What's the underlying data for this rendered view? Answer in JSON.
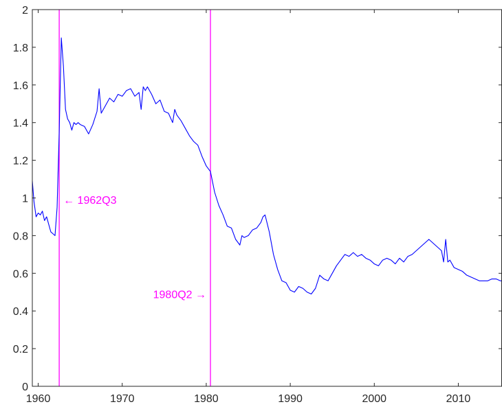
{
  "chart_data": {
    "type": "line",
    "title": "",
    "xlabel": "",
    "ylabel": "",
    "xlim": [
      1959.3,
      2015.2
    ],
    "ylim": [
      0,
      2
    ],
    "grid": false,
    "x_ticks": [
      1960,
      1970,
      1980,
      1990,
      2000,
      2010
    ],
    "x_tick_labels": [
      "1960",
      "1970",
      "1980",
      "1990",
      "2000",
      "2010"
    ],
    "y_ticks": [
      0,
      0.2,
      0.4,
      0.6,
      0.8,
      1,
      1.2,
      1.4,
      1.6,
      1.8,
      2
    ],
    "y_tick_labels": [
      "0",
      "0.2",
      "0.4",
      "0.6",
      "0.8",
      "1",
      "1.2",
      "1.4",
      "1.6",
      "1.8",
      "2"
    ],
    "series": [
      {
        "color": "#0000ff",
        "x": [
          1959.3,
          1959.5,
          1959.75,
          1960.0,
          1960.25,
          1960.5,
          1960.75,
          1961.0,
          1961.25,
          1961.5,
          1961.75,
          1962.0,
          1962.25,
          1962.5,
          1962.75,
          1963.0,
          1963.25,
          1963.5,
          1963.75,
          1964.0,
          1964.25,
          1964.5,
          1964.75,
          1965.0,
          1965.5,
          1966.0,
          1966.5,
          1967.0,
          1967.25,
          1967.5,
          1968.0,
          1968.5,
          1969.0,
          1969.5,
          1970.0,
          1970.5,
          1971.0,
          1971.5,
          1972.0,
          1972.25,
          1972.5,
          1972.75,
          1973.0,
          1973.5,
          1974.0,
          1974.5,
          1975.0,
          1975.5,
          1976.0,
          1976.25,
          1976.5,
          1977.0,
          1977.5,
          1978.0,
          1978.5,
          1979.0,
          1979.5,
          1980.0,
          1980.5,
          1981.0,
          1981.5,
          1982.0,
          1982.5,
          1983.0,
          1983.5,
          1984.0,
          1984.25,
          1984.5,
          1985.0,
          1985.5,
          1986.0,
          1986.5,
          1986.75,
          1987.0,
          1987.5,
          1988.0,
          1988.5,
          1989.0,
          1989.5,
          1990.0,
          1990.5,
          1991.0,
          1991.5,
          1992.0,
          1992.5,
          1993.0,
          1993.5,
          1994.0,
          1994.5,
          1995.0,
          1995.5,
          1996.0,
          1996.5,
          1997.0,
          1997.5,
          1998.0,
          1998.5,
          1999.0,
          1999.5,
          2000.0,
          2000.5,
          2001.0,
          2001.5,
          2002.0,
          2002.5,
          2003.0,
          2003.5,
          2004.0,
          2004.5,
          2005.0,
          2005.5,
          2006.0,
          2006.5,
          2007.0,
          2007.5,
          2008.0,
          2008.25,
          2008.5,
          2008.75,
          2009.0,
          2009.5,
          2010.0,
          2010.5,
          2011.0,
          2011.5,
          2012.0,
          2012.5,
          2013.0,
          2013.5,
          2014.0,
          2014.5,
          2015.0,
          2015.2
        ],
        "y": [
          1.09,
          0.98,
          0.9,
          0.92,
          0.91,
          0.93,
          0.88,
          0.9,
          0.86,
          0.82,
          0.81,
          0.8,
          0.95,
          1.35,
          1.85,
          1.7,
          1.47,
          1.42,
          1.4,
          1.36,
          1.4,
          1.39,
          1.4,
          1.39,
          1.38,
          1.34,
          1.39,
          1.46,
          1.58,
          1.45,
          1.49,
          1.53,
          1.51,
          1.55,
          1.54,
          1.57,
          1.58,
          1.54,
          1.56,
          1.47,
          1.59,
          1.57,
          1.59,
          1.55,
          1.5,
          1.52,
          1.46,
          1.45,
          1.4,
          1.47,
          1.44,
          1.41,
          1.37,
          1.33,
          1.3,
          1.28,
          1.22,
          1.17,
          1.14,
          1.03,
          0.96,
          0.91,
          0.85,
          0.84,
          0.78,
          0.75,
          0.8,
          0.79,
          0.8,
          0.83,
          0.84,
          0.87,
          0.9,
          0.91,
          0.82,
          0.7,
          0.62,
          0.56,
          0.55,
          0.51,
          0.5,
          0.53,
          0.52,
          0.5,
          0.49,
          0.52,
          0.59,
          0.57,
          0.56,
          0.6,
          0.64,
          0.67,
          0.7,
          0.69,
          0.71,
          0.69,
          0.7,
          0.68,
          0.67,
          0.65,
          0.64,
          0.67,
          0.68,
          0.67,
          0.65,
          0.68,
          0.66,
          0.69,
          0.7,
          0.72,
          0.74,
          0.76,
          0.78,
          0.76,
          0.74,
          0.72,
          0.66,
          0.78,
          0.66,
          0.67,
          0.63,
          0.62,
          0.61,
          0.59,
          0.58,
          0.57,
          0.56,
          0.56,
          0.56,
          0.57,
          0.57,
          0.56,
          0.56
        ]
      }
    ],
    "vlines": [
      {
        "x": 1962.5,
        "color": "#ff00ff",
        "label": "← 1962Q3",
        "label_y": 0.99,
        "label_side": "right"
      },
      {
        "x": 1980.5,
        "color": "#ff00ff",
        "label": "1980Q2 →",
        "label_y": 0.49,
        "label_side": "left"
      }
    ]
  }
}
